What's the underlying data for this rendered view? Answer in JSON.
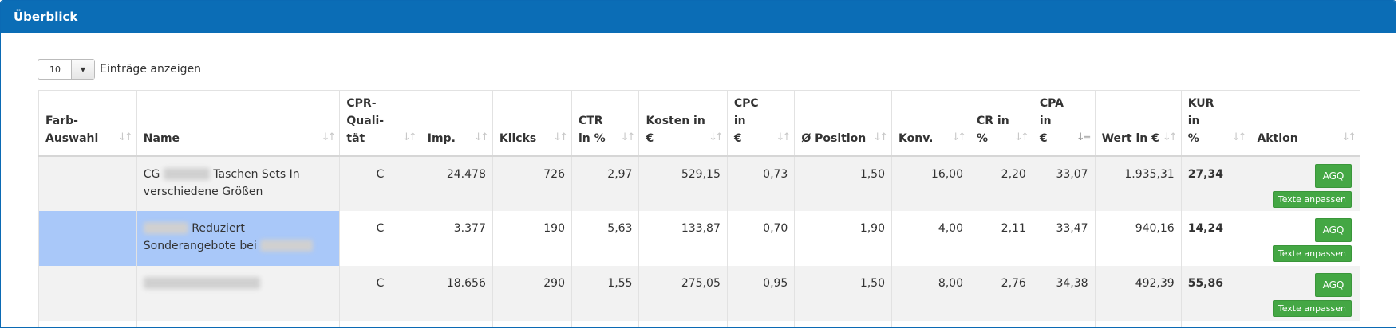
{
  "panel": {
    "title": "Überblick"
  },
  "length_menu": {
    "value": "10",
    "label": "Einträge anzeigen"
  },
  "columns": [
    {
      "key": "farb",
      "l1": "Farb-",
      "l2": "Auswahl"
    },
    {
      "key": "name",
      "l1": "",
      "l2": "Name"
    },
    {
      "key": "cpr",
      "l1": "CPR-",
      "l1b": "Quali-",
      "l2": "tät"
    },
    {
      "key": "imp",
      "l1": "",
      "l2": "Imp."
    },
    {
      "key": "klicks",
      "l1": "",
      "l2": "Klicks"
    },
    {
      "key": "ctr",
      "l1": "CTR",
      "l2": "in %"
    },
    {
      "key": "kosten",
      "l1": "Kosten in",
      "l2": "€"
    },
    {
      "key": "cpc",
      "l1": "CPC in",
      "l2": "€"
    },
    {
      "key": "pos",
      "l1": "",
      "l2": "Ø Position"
    },
    {
      "key": "konv",
      "l1": "",
      "l2": "Konv."
    },
    {
      "key": "cr",
      "l1": "CR in",
      "l2": "%"
    },
    {
      "key": "cpa",
      "l1": "CPA in",
      "l2": "€"
    },
    {
      "key": "wert",
      "l1": "",
      "l2": "Wert in €"
    },
    {
      "key": "kur",
      "l1": "KUR in",
      "l2": "%"
    },
    {
      "key": "aktion",
      "l1": "",
      "l2": "Aktion"
    }
  ],
  "rows": [
    {
      "name_prefix": "CG",
      "name_suffix": "Taschen Sets In",
      "name_line2": "verschiedene Größen",
      "cpr": "C",
      "imp": "24.478",
      "klicks": "726",
      "ctr": "2,97",
      "kosten": "529,15",
      "cpc": "0,73",
      "pos": "1,50",
      "konv": "16,00",
      "cr": "2,20",
      "cpa": "33,07",
      "wert": "1.935,31",
      "kur": "27,34"
    },
    {
      "name_prefix": "",
      "name_suffix": "Reduziert",
      "name_line2": "Sonderangebote bei",
      "cpr": "C",
      "imp": "3.377",
      "klicks": "190",
      "ctr": "5,63",
      "kosten": "133,87",
      "cpc": "0,70",
      "pos": "1,90",
      "konv": "4,00",
      "cr": "2,11",
      "cpa": "33,47",
      "wert": "940,16",
      "kur": "14,24"
    },
    {
      "name_prefix": "",
      "name_suffix": "",
      "name_line2": "",
      "cpr": "C",
      "imp": "18.656",
      "klicks": "290",
      "ctr": "1,55",
      "kosten": "275,05",
      "cpc": "0,95",
      "pos": "1,50",
      "konv": "8,00",
      "cr": "2,76",
      "cpa": "34,38",
      "wert": "492,39",
      "kur": "55,86"
    }
  ],
  "actions": {
    "agq": "AGQ",
    "texte": "Texte anpassen"
  },
  "colors": {
    "header": "#0b6db6",
    "button": "#44a744",
    "row_highlight": "#a9c8f9",
    "row_stripe": "#f2f2f2"
  },
  "icons": {
    "sort": "sort-both-icon",
    "sort_active": "sort-desc-icon",
    "dropdown": "caret-down-icon"
  }
}
